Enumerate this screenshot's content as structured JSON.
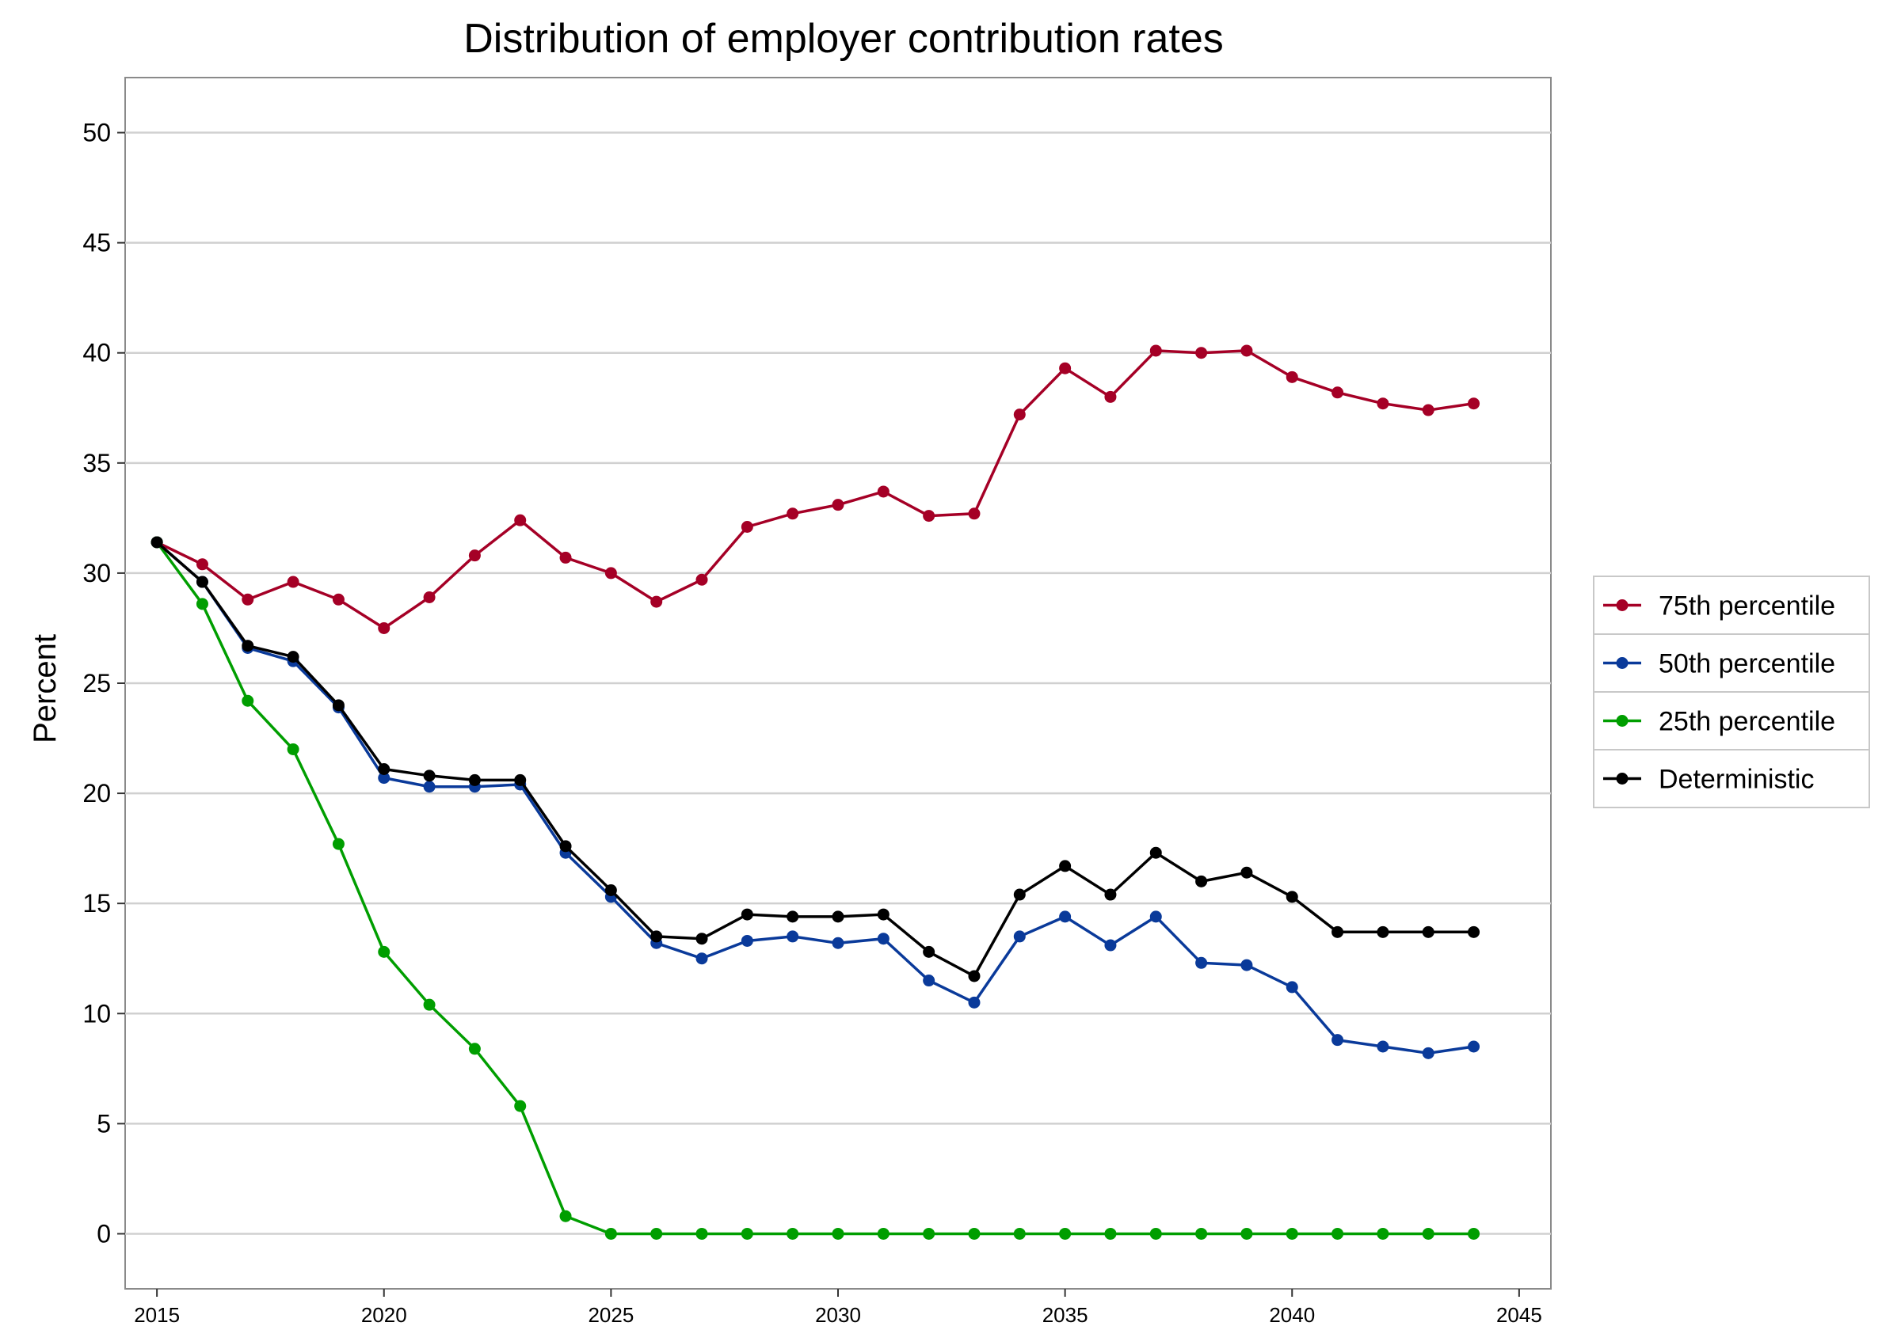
{
  "chart_data": {
    "type": "line",
    "title": "Distribution of employer contribution rates",
    "xlabel": "",
    "ylabel": "Percent",
    "xlim": [
      2014.3,
      2045.7
    ],
    "ylim": [
      -2.5,
      52.5
    ],
    "xticks": [
      2015,
      2020,
      2025,
      2030,
      2035,
      2040,
      2045
    ],
    "yticks": [
      0,
      5,
      10,
      15,
      20,
      25,
      30,
      35,
      40,
      45,
      50
    ],
    "grid": true,
    "legend_position": "right",
    "x": [
      2015,
      2016,
      2017,
      2018,
      2019,
      2020,
      2021,
      2022,
      2023,
      2024,
      2025,
      2026,
      2027,
      2028,
      2029,
      2030,
      2031,
      2032,
      2033,
      2034,
      2035,
      2036,
      2037,
      2038,
      2039,
      2040,
      2041,
      2042,
      2043,
      2044
    ],
    "series": [
      {
        "name": "75th percentile",
        "color": "#a50026",
        "values": [
          31.4,
          30.4,
          28.8,
          29.6,
          28.8,
          27.5,
          28.9,
          30.8,
          32.4,
          30.7,
          30.0,
          28.7,
          29.7,
          32.1,
          32.7,
          33.1,
          33.7,
          32.6,
          32.7,
          37.2,
          39.3,
          38.0,
          40.1,
          40.0,
          40.1,
          38.9,
          38.2,
          37.7,
          37.4,
          37.7
        ]
      },
      {
        "name": "50th percentile",
        "color": "#0a3a9a",
        "values": [
          31.4,
          29.6,
          26.6,
          26.0,
          23.9,
          20.7,
          20.3,
          20.3,
          20.4,
          17.3,
          15.3,
          13.2,
          12.5,
          13.3,
          13.5,
          13.2,
          13.4,
          11.5,
          10.5,
          13.5,
          14.4,
          13.1,
          14.4,
          12.3,
          12.2,
          11.2,
          8.8,
          8.5,
          8.2,
          8.5
        ]
      },
      {
        "name": "25th percentile",
        "color": "#009e00",
        "values": [
          31.4,
          28.6,
          24.2,
          22.0,
          17.7,
          12.8,
          10.4,
          8.4,
          5.8,
          0.8,
          0,
          0,
          0,
          0,
          0,
          0,
          0,
          0,
          0,
          0,
          0,
          0,
          0,
          0,
          0,
          0,
          0,
          0,
          0,
          0
        ]
      },
      {
        "name": "Deterministic",
        "color": "#000000",
        "values": [
          31.4,
          29.6,
          26.7,
          26.2,
          24.0,
          21.1,
          20.8,
          20.6,
          20.6,
          17.6,
          15.6,
          13.5,
          13.4,
          14.5,
          14.4,
          14.4,
          14.5,
          12.8,
          11.7,
          15.4,
          16.7,
          15.4,
          17.3,
          16.0,
          16.4,
          15.3,
          13.7,
          13.7,
          13.7,
          13.7
        ]
      }
    ]
  }
}
